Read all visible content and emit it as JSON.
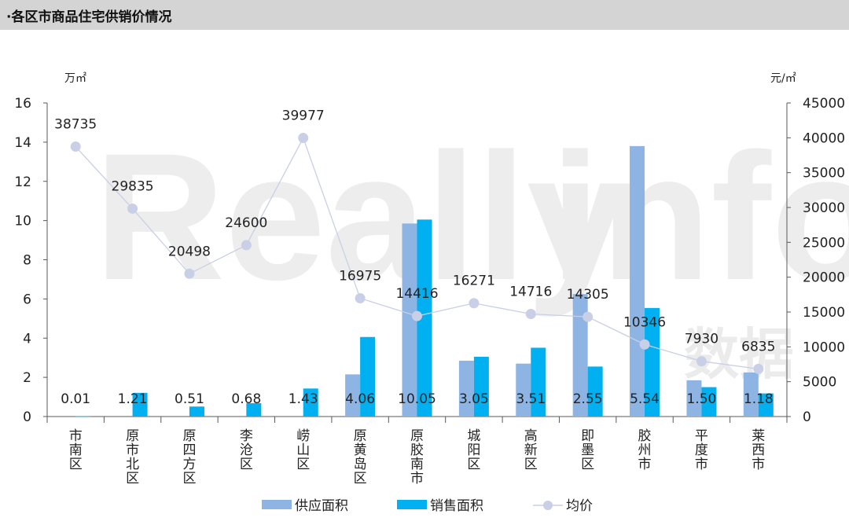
{
  "header": {
    "title": "·各区市商品住宅供销价情况"
  },
  "watermark": {
    "text": "Really",
    "text2": "info",
    "cn": "数据"
  },
  "colors": {
    "supply": "#8eb4e3",
    "sales": "#00b0f0",
    "price": "#c9cfe6",
    "axis": "#595959"
  },
  "chart_data": {
    "type": "bar",
    "categories": [
      "市南区",
      "原市北区",
      "原四方区",
      "李沧区",
      "崂山区",
      "原黄岛区",
      "原胶南市",
      "城阳区",
      "高新区",
      "即墨区",
      "胶州市",
      "平度市",
      "莱西市"
    ],
    "series": [
      {
        "name": "供应面积",
        "type": "bar",
        "axis": "left",
        "values": [
          0,
          0,
          0,
          0,
          0,
          2.15,
          9.85,
          2.85,
          2.7,
          6.25,
          13.8,
          1.85,
          2.25
        ]
      },
      {
        "name": "销售面积",
        "type": "bar",
        "axis": "left",
        "values": [
          0.01,
          1.21,
          0.51,
          0.68,
          1.43,
          4.06,
          10.05,
          3.05,
          3.51,
          2.55,
          5.54,
          1.5,
          1.18
        ],
        "labels": [
          "0.01",
          "1.21",
          "0.51",
          "0.68",
          "1.43",
          "4.06",
          "10.05",
          "3.05",
          "3.51",
          "2.55",
          "5.54",
          "1.50",
          "1.18"
        ]
      },
      {
        "name": "均价",
        "type": "line",
        "axis": "right",
        "values": [
          38735,
          29835,
          20498,
          24600,
          39977,
          16975,
          14416,
          16271,
          14716,
          14305,
          10346,
          7930,
          6835
        ],
        "labels": [
          "38735",
          "29835",
          "20498",
          "24600",
          "39977",
          "16975",
          "14416",
          "16271",
          "14716",
          "14305",
          "10346",
          "7930",
          "6835"
        ]
      }
    ],
    "y_left": {
      "unit": "万㎡",
      "min": 0,
      "max": 16,
      "ticks": [
        "0",
        "2",
        "4",
        "6",
        "8",
        "10",
        "12",
        "14",
        "16"
      ]
    },
    "y_right": {
      "unit": "元/㎡",
      "min": 0,
      "max": 45000,
      "ticks": [
        "0",
        "5000",
        "10000",
        "15000",
        "20000",
        "25000",
        "30000",
        "35000",
        "40000",
        "45000"
      ]
    },
    "legend": {
      "position": "bottom",
      "items": [
        "供应面积",
        "销售面积",
        "均价"
      ]
    },
    "grid": false
  }
}
